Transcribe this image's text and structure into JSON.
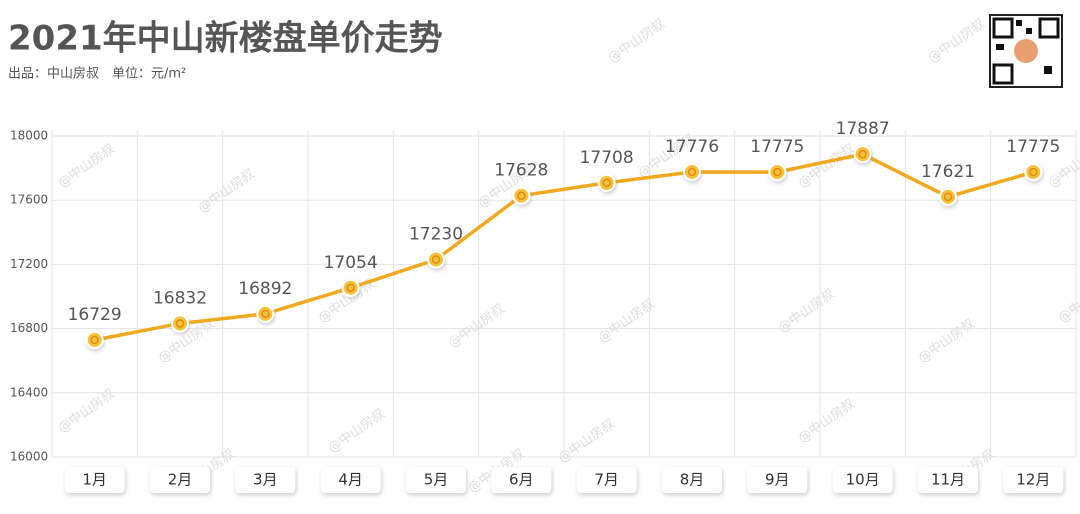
{
  "chart_data": {
    "type": "line",
    "title": "2021年中山新楼盘单价走势",
    "subtitle": "出品：中山房叔　单位：元/m²",
    "watermark": "@中山房叔",
    "categories": [
      "1月",
      "2月",
      "3月",
      "4月",
      "5月",
      "6月",
      "7月",
      "8月",
      "9月",
      "10月",
      "11月",
      "12月"
    ],
    "series": [
      {
        "name": "单价",
        "color": "#f0a81e",
        "values": [
          16729,
          16832,
          16892,
          17054,
          17230,
          17628,
          17708,
          17776,
          17775,
          17887,
          17621,
          17775
        ]
      }
    ],
    "ylim": [
      16000,
      18000
    ],
    "yticks": [
      16000,
      16400,
      16800,
      17200,
      17600,
      18000
    ],
    "grid": true
  }
}
